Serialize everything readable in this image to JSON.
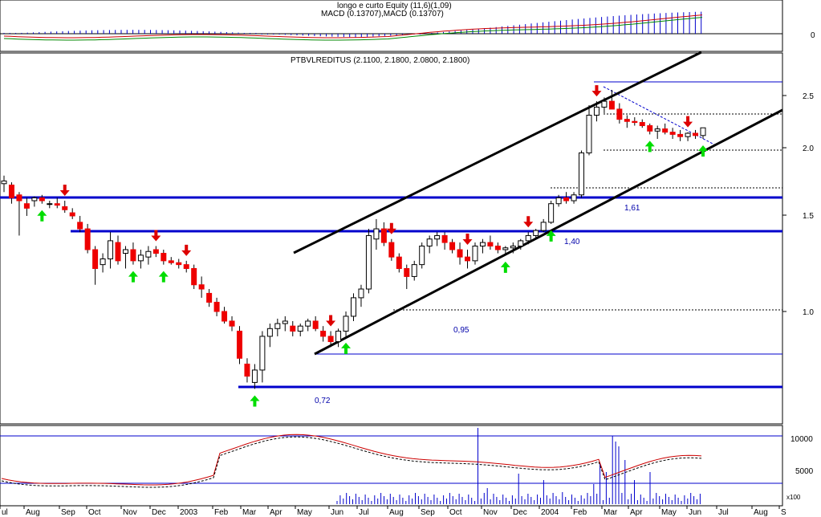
{
  "panels": {
    "top": {
      "title1": "longo e curto Equity (11,6)(1,09)",
      "title2": "MACD (0.13707),MACD (0.13707)",
      "axis_label": "0"
    },
    "main": {
      "title": "PTBVLREDITUS (2.1100, 2.1800, 2.0800, 2.1800)",
      "y_ticks": [
        "2.5",
        "2.0",
        "1.5",
        "1.0"
      ],
      "level_labels": [
        "1,61",
        "1,40",
        "0,95",
        "0,72"
      ]
    },
    "bottom": {
      "y_ticks": [
        "10000",
        "5000"
      ],
      "unit": "x100"
    }
  },
  "x_axis": {
    "labels": [
      "ul",
      "Aug",
      "Sep",
      "Oct",
      "Nov",
      "Dec",
      "2003",
      "Feb",
      "Mar",
      "Apr",
      "May",
      "Jun",
      "Jul",
      "Aug",
      "Sep",
      "Oct",
      "Nov",
      "Dec",
      "2004",
      "Feb",
      "Mar",
      "Apr",
      "May",
      "Jun",
      "Jul",
      "Aug",
      "S"
    ]
  },
  "colors": {
    "up_candle": "#ffffff",
    "down_candle": "#ee0000",
    "support_line": "#0000cc",
    "trend_line": "#000000",
    "signal_up": "#00dd00",
    "signal_down": "#dd0000",
    "volume": "#0000cc",
    "oscillator": "#cc0000"
  },
  "chart_data": [
    {
      "type": "line",
      "panel": "MACD",
      "note_series": [
        "MACD",
        "Signal"
      ],
      "ylim": [
        -0.1,
        0.15
      ]
    },
    {
      "type": "candlestick",
      "panel": "price",
      "ylim": [
        0.6,
        2.7
      ],
      "log_scale": true,
      "horizontal_levels": [
        1.61,
        1.4,
        0.95,
        0.72
      ],
      "candles": [
        [
          1.72,
          1.78,
          1.66,
          1.74
        ],
        [
          1.71,
          1.73,
          1.58,
          1.62
        ],
        [
          1.64,
          1.66,
          1.38,
          1.6
        ],
        [
          1.58,
          1.62,
          1.5,
          1.55
        ],
        [
          1.6,
          1.63,
          1.56,
          1.62
        ],
        [
          1.62,
          1.64,
          1.58,
          1.6
        ],
        [
          1.58,
          1.6,
          1.55,
          1.58
        ],
        [
          1.58,
          1.62,
          1.55,
          1.57
        ],
        [
          1.56,
          1.6,
          1.52,
          1.54
        ],
        [
          1.52,
          1.55,
          1.48,
          1.5
        ],
        [
          1.46,
          1.5,
          1.4,
          1.42
        ],
        [
          1.42,
          1.45,
          1.28,
          1.3
        ],
        [
          1.3,
          1.32,
          1.12,
          1.2
        ],
        [
          1.22,
          1.28,
          1.18,
          1.25
        ],
        [
          1.25,
          1.4,
          1.2,
          1.35
        ],
        [
          1.34,
          1.38,
          1.22,
          1.24
        ],
        [
          1.28,
          1.32,
          1.2,
          1.3
        ],
        [
          1.3,
          1.34,
          1.22,
          1.24
        ],
        [
          1.24,
          1.3,
          1.2,
          1.27
        ],
        [
          1.26,
          1.32,
          1.22,
          1.29
        ],
        [
          1.3,
          1.32,
          1.26,
          1.28
        ],
        [
          1.28,
          1.3,
          1.22,
          1.24
        ],
        [
          1.24,
          1.26,
          1.22,
          1.23
        ],
        [
          1.23,
          1.25,
          1.2,
          1.22
        ],
        [
          1.22,
          1.24,
          1.18,
          1.2
        ],
        [
          1.2,
          1.22,
          1.1,
          1.12
        ],
        [
          1.12,
          1.16,
          1.06,
          1.1
        ],
        [
          1.08,
          1.1,
          1.02,
          1.04
        ],
        [
          1.04,
          1.06,
          0.98,
          1.0
        ],
        [
          1.0,
          1.02,
          0.95,
          0.96
        ],
        [
          0.96,
          0.98,
          0.92,
          0.94
        ],
        [
          0.92,
          0.94,
          0.8,
          0.82
        ],
        [
          0.8,
          0.82,
          0.74,
          0.76
        ],
        [
          0.74,
          0.8,
          0.72,
          0.78
        ],
        [
          0.78,
          0.92,
          0.74,
          0.9
        ],
        [
          0.9,
          0.95,
          0.86,
          0.93
        ],
        [
          0.93,
          0.97,
          0.9,
          0.95
        ],
        [
          0.95,
          0.98,
          0.92,
          0.96
        ],
        [
          0.94,
          0.96,
          0.9,
          0.92
        ],
        [
          0.92,
          0.95,
          0.9,
          0.94
        ],
        [
          0.94,
          0.97,
          0.92,
          0.96
        ],
        [
          0.96,
          0.98,
          0.92,
          0.93
        ],
        [
          0.92,
          0.94,
          0.88,
          0.9
        ],
        [
          0.9,
          0.92,
          0.86,
          0.88
        ],
        [
          0.88,
          0.93,
          0.86,
          0.92
        ],
        [
          0.92,
          1.0,
          0.9,
          0.98
        ],
        [
          0.98,
          1.08,
          0.96,
          1.06
        ],
        [
          1.06,
          1.12,
          1.02,
          1.1
        ],
        [
          1.1,
          1.42,
          1.08,
          1.38
        ],
        [
          1.36,
          1.48,
          1.3,
          1.42
        ],
        [
          1.42,
          1.46,
          1.32,
          1.34
        ],
        [
          1.34,
          1.36,
          1.24,
          1.26
        ],
        [
          1.26,
          1.28,
          1.18,
          1.2
        ],
        [
          1.2,
          1.22,
          1.1,
          1.16
        ],
        [
          1.16,
          1.24,
          1.14,
          1.22
        ],
        [
          1.22,
          1.34,
          1.2,
          1.32
        ],
        [
          1.32,
          1.38,
          1.28,
          1.36
        ],
        [
          1.36,
          1.4,
          1.32,
          1.38
        ],
        [
          1.38,
          1.4,
          1.3,
          1.34
        ],
        [
          1.34,
          1.36,
          1.28,
          1.3
        ],
        [
          1.3,
          1.34,
          1.22,
          1.26
        ],
        [
          1.26,
          1.3,
          1.2,
          1.24
        ],
        [
          1.24,
          1.34,
          1.22,
          1.32
        ],
        [
          1.32,
          1.36,
          1.28,
          1.34
        ],
        [
          1.34,
          1.38,
          1.3,
          1.32
        ],
        [
          1.32,
          1.34,
          1.28,
          1.3
        ],
        [
          1.3,
          1.32,
          1.27,
          1.31
        ],
        [
          1.31,
          1.34,
          1.28,
          1.32
        ],
        [
          1.32,
          1.36,
          1.3,
          1.35
        ],
        [
          1.35,
          1.4,
          1.33,
          1.38
        ],
        [
          1.38,
          1.42,
          1.36,
          1.41
        ],
        [
          1.41,
          1.48,
          1.4,
          1.46
        ],
        [
          1.46,
          1.6,
          1.45,
          1.58
        ],
        [
          1.58,
          1.64,
          1.56,
          1.62
        ],
        [
          1.62,
          1.66,
          1.58,
          1.6
        ],
        [
          1.6,
          1.66,
          1.58,
          1.64
        ],
        [
          1.64,
          1.98,
          1.62,
          1.96
        ],
        [
          1.96,
          2.4,
          1.94,
          2.3
        ],
        [
          2.3,
          2.44,
          2.24,
          2.38
        ],
        [
          2.38,
          2.48,
          2.32,
          2.44
        ],
        [
          2.44,
          2.56,
          2.38,
          2.36
        ],
        [
          2.36,
          2.42,
          2.22,
          2.26
        ],
        [
          2.26,
          2.3,
          2.18,
          2.24
        ],
        [
          2.24,
          2.28,
          2.2,
          2.23
        ],
        [
          2.23,
          2.26,
          2.18,
          2.2
        ],
        [
          2.2,
          2.22,
          2.12,
          2.15
        ],
        [
          2.15,
          2.2,
          2.08,
          2.17
        ],
        [
          2.17,
          2.22,
          2.12,
          2.14
        ],
        [
          2.14,
          2.18,
          2.08,
          2.12
        ],
        [
          2.12,
          2.16,
          2.06,
          2.1
        ],
        [
          2.1,
          2.14,
          2.06,
          2.13
        ],
        [
          2.13,
          2.16,
          2.08,
          2.11
        ],
        [
          2.11,
          2.18,
          2.08,
          2.18
        ]
      ]
    },
    {
      "type": "bar",
      "panel": "volume",
      "ylim": [
        0,
        12000
      ],
      "unit": "x100"
    }
  ]
}
